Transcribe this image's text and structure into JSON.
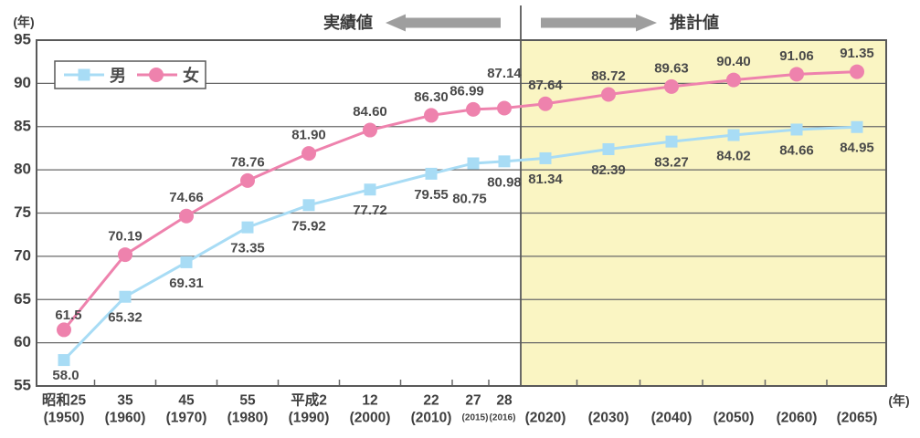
{
  "chart_data": {
    "type": "line",
    "unit_label_top": "(年)",
    "unit_label_bottom_right": "(年)",
    "ylim": [
      55,
      95
    ],
    "yticks": [
      55,
      60,
      65,
      70,
      75,
      80,
      85,
      90,
      95
    ],
    "categories": [
      {
        "era": "昭和25",
        "year": "(1950)"
      },
      {
        "era": "35",
        "year": "(1960)"
      },
      {
        "era": "45",
        "year": "(1970)"
      },
      {
        "era": "55",
        "year": "(1980)"
      },
      {
        "era": "平成2",
        "year": "(1990)"
      },
      {
        "era": "12",
        "year": "(2000)"
      },
      {
        "era": "22",
        "year": "(2010)"
      },
      {
        "era": "27",
        "year": "(2015)",
        "small": true
      },
      {
        "era": "28",
        "year": "(2016)",
        "small": true
      },
      {
        "era": "",
        "year": "(2020)"
      },
      {
        "era": "",
        "year": "(2030)"
      },
      {
        "era": "",
        "year": "(2040)"
      },
      {
        "era": "",
        "year": "(2050)"
      },
      {
        "era": "",
        "year": "(2060)"
      },
      {
        "era": "",
        "year": "(2065)"
      }
    ],
    "series": [
      {
        "name": "男",
        "marker": "square",
        "color": "#a8dcf5",
        "values": [
          58.0,
          65.32,
          69.31,
          73.35,
          75.92,
          77.72,
          79.55,
          80.75,
          80.98,
          81.34,
          82.39,
          83.27,
          84.02,
          84.66,
          84.95
        ],
        "labels": [
          "58.0",
          "65.32",
          "69.31",
          "73.35",
          "75.92",
          "77.72",
          "79.55",
          "80.75",
          "80.98",
          "81.34",
          "82.39",
          "83.27",
          "84.02",
          "84.66",
          "84.95"
        ]
      },
      {
        "name": "女",
        "marker": "circle",
        "color": "#ee82ad",
        "values": [
          61.5,
          70.19,
          74.66,
          78.76,
          81.9,
          84.6,
          86.3,
          86.99,
          87.14,
          87.64,
          88.72,
          89.63,
          90.4,
          91.06,
          91.35
        ],
        "labels": [
          "61.5",
          "70.19",
          "74.66",
          "78.76",
          "81.90",
          "84.60",
          "86.30",
          "86.99",
          "87.14",
          "87.64",
          "88.72",
          "89.63",
          "90.40",
          "91.06",
          "91.35"
        ]
      }
    ],
    "annotations": {
      "actual": "実績値",
      "projected": "推計値"
    },
    "legend": {
      "male": "男",
      "female": "女"
    },
    "projection_start_index": 9,
    "grid": true,
    "legend_position": "top-left",
    "colors": {
      "projection_bg": "#faf5c3",
      "grid": "#686868",
      "border": "#595959",
      "axis_text": "#3f3f3f",
      "label_text": "#4a4a4a",
      "arrow": "#9e9e9e"
    }
  }
}
